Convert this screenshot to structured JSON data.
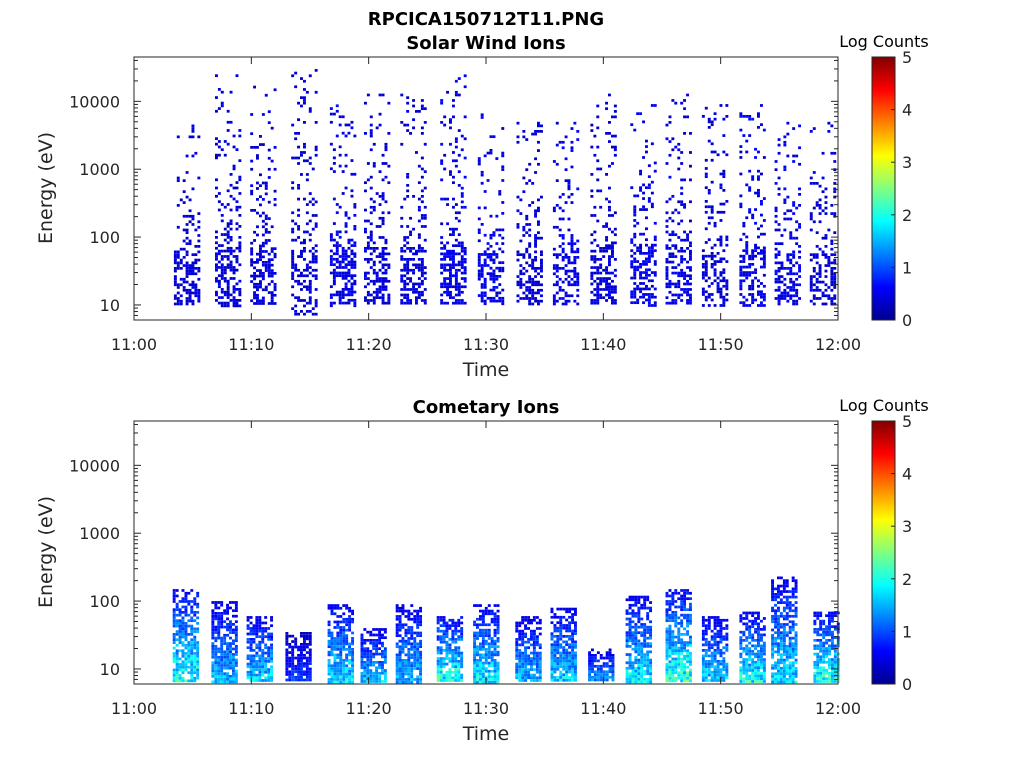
{
  "figure": {
    "title": "RPCICA150712T11.PNG"
  },
  "colormap": [
    "#00008f",
    "#0000ff",
    "#0080ff",
    "#00ffff",
    "#80ff80",
    "#ffff00",
    "#ff8000",
    "#ff0000",
    "#800000"
  ],
  "chart_data": [
    {
      "type": "heatmap",
      "title": "Solar Wind Ions",
      "xlabel": "Time",
      "ylabel": "Energy (eV)",
      "x_ticks": [
        "11:00",
        "11:10",
        "11:20",
        "11:30",
        "11:40",
        "11:50",
        "12:00"
      ],
      "x_range_minutes": [
        0,
        60
      ],
      "y_scale": "log",
      "y_range": [
        6,
        45000
      ],
      "y_ticks": [
        10,
        100,
        1000,
        10000
      ],
      "y_tick_labels": [
        "10",
        "100",
        "1000",
        "10000"
      ],
      "colorbar": {
        "label": "Log Counts",
        "range": [
          0,
          5
        ],
        "ticks": [
          "0",
          "1",
          "2",
          "3",
          "4",
          "5"
        ]
      },
      "bursts": [
        {
          "t": 4.3,
          "e_lo": 20,
          "e_hi": 5000,
          "lvl": 0.4
        },
        {
          "t": 7.8,
          "e_lo": 20,
          "e_hi": 25000,
          "lvl": 0.4
        },
        {
          "t": 10.8,
          "e_lo": 20,
          "e_hi": 17000,
          "lvl": 0.4
        },
        {
          "t": 14.3,
          "e_lo": 15,
          "e_hi": 30000,
          "lvl": 0.4
        },
        {
          "t": 17.6,
          "e_lo": 20,
          "e_hi": 9000,
          "lvl": 0.5
        },
        {
          "t": 20.5,
          "e_lo": 20,
          "e_hi": 13000,
          "lvl": 0.4
        },
        {
          "t": 23.6,
          "e_lo": 20,
          "e_hi": 13000,
          "lvl": 0.4
        },
        {
          "t": 27.0,
          "e_lo": 20,
          "e_hi": 30000,
          "lvl": 0.5
        },
        {
          "t": 30.2,
          "e_lo": 20,
          "e_hi": 8000,
          "lvl": 0.5
        },
        {
          "t": 33.5,
          "e_lo": 20,
          "e_hi": 5000,
          "lvl": 0.4
        },
        {
          "t": 36.6,
          "e_lo": 20,
          "e_hi": 5000,
          "lvl": 0.5
        },
        {
          "t": 39.8,
          "e_lo": 20,
          "e_hi": 13000,
          "lvl": 0.4
        },
        {
          "t": 43.2,
          "e_lo": 20,
          "e_hi": 10000,
          "lvl": 0.5
        },
        {
          "t": 46.2,
          "e_lo": 20,
          "e_hi": 13000,
          "lvl": 0.5
        },
        {
          "t": 49.3,
          "e_lo": 20,
          "e_hi": 10000,
          "lvl": 0.4
        },
        {
          "t": 52.5,
          "e_lo": 20,
          "e_hi": 10000,
          "lvl": 0.5
        },
        {
          "t": 55.5,
          "e_lo": 20,
          "e_hi": 5000,
          "lvl": 0.5
        },
        {
          "t": 58.5,
          "e_lo": 20,
          "e_hi": 5000,
          "lvl": 0.4
        }
      ]
    },
    {
      "type": "heatmap",
      "title": "Cometary Ions",
      "xlabel": "Time",
      "ylabel": "Energy (eV)",
      "x_ticks": [
        "11:00",
        "11:10",
        "11:20",
        "11:30",
        "11:40",
        "11:50",
        "12:00"
      ],
      "x_range_minutes": [
        0,
        60
      ],
      "y_scale": "log",
      "y_range": [
        6,
        45000
      ],
      "y_ticks": [
        10,
        100,
        1000,
        10000
      ],
      "y_tick_labels": [
        "10",
        "100",
        "1000",
        "10000"
      ],
      "colorbar": {
        "label": "Log Counts",
        "range": [
          0,
          5
        ],
        "ticks": [
          "0",
          "1",
          "2",
          "3",
          "4",
          "5"
        ]
      },
      "bursts": [
        {
          "t": 4.2,
          "e_lo": 8,
          "e_hi": 150,
          "lvl": 1.8
        },
        {
          "t": 7.5,
          "e_lo": 8,
          "e_hi": 100,
          "lvl": 1.4
        },
        {
          "t": 10.5,
          "e_lo": 8,
          "e_hi": 60,
          "lvl": 1.5
        },
        {
          "t": 13.8,
          "e_lo": 8,
          "e_hi": 35,
          "lvl": 0.8
        },
        {
          "t": 17.4,
          "e_lo": 8,
          "e_hi": 90,
          "lvl": 1.6
        },
        {
          "t": 20.2,
          "e_lo": 8,
          "e_hi": 40,
          "lvl": 1.4
        },
        {
          "t": 23.2,
          "e_lo": 8,
          "e_hi": 90,
          "lvl": 1.4
        },
        {
          "t": 26.7,
          "e_lo": 8,
          "e_hi": 60,
          "lvl": 1.8
        },
        {
          "t": 29.8,
          "e_lo": 8,
          "e_hi": 90,
          "lvl": 1.6
        },
        {
          "t": 33.4,
          "e_lo": 8,
          "e_hi": 60,
          "lvl": 1.4
        },
        {
          "t": 36.4,
          "e_lo": 8,
          "e_hi": 80,
          "lvl": 1.5
        },
        {
          "t": 39.6,
          "e_lo": 8,
          "e_hi": 20,
          "lvl": 1.2
        },
        {
          "t": 42.8,
          "e_lo": 8,
          "e_hi": 120,
          "lvl": 1.6
        },
        {
          "t": 46.2,
          "e_lo": 8,
          "e_hi": 150,
          "lvl": 1.9
        },
        {
          "t": 49.3,
          "e_lo": 8,
          "e_hi": 60,
          "lvl": 1.5
        },
        {
          "t": 52.5,
          "e_lo": 8,
          "e_hi": 70,
          "lvl": 1.7
        },
        {
          "t": 55.2,
          "e_lo": 8,
          "e_hi": 230,
          "lvl": 1.6
        },
        {
          "t": 58.8,
          "e_lo": 8,
          "e_hi": 70,
          "lvl": 1.8
        }
      ]
    }
  ]
}
